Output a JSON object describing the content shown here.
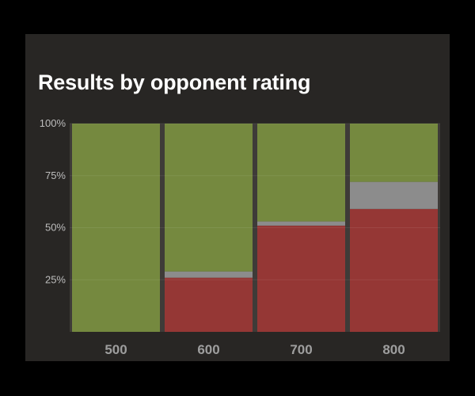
{
  "card": {
    "title": "Results by opponent rating"
  },
  "chart_data": {
    "type": "bar",
    "stacked": true,
    "normalized": true,
    "categories": [
      "500",
      "600",
      "700",
      "800"
    ],
    "series": [
      {
        "color": "#953735",
        "values": [
          0,
          26,
          51,
          59
        ]
      },
      {
        "color": "#8c8c8c",
        "values": [
          0,
          3,
          2,
          13
        ]
      },
      {
        "color": "#75893f",
        "values": [
          100,
          71,
          47,
          28
        ]
      }
    ],
    "ylim": [
      0,
      100
    ],
    "yticks": [
      25,
      50,
      75,
      100
    ],
    "ytick_labels": [
      "25%",
      "50%",
      "75%",
      "100%"
    ],
    "grid": true,
    "legend": "none"
  }
}
